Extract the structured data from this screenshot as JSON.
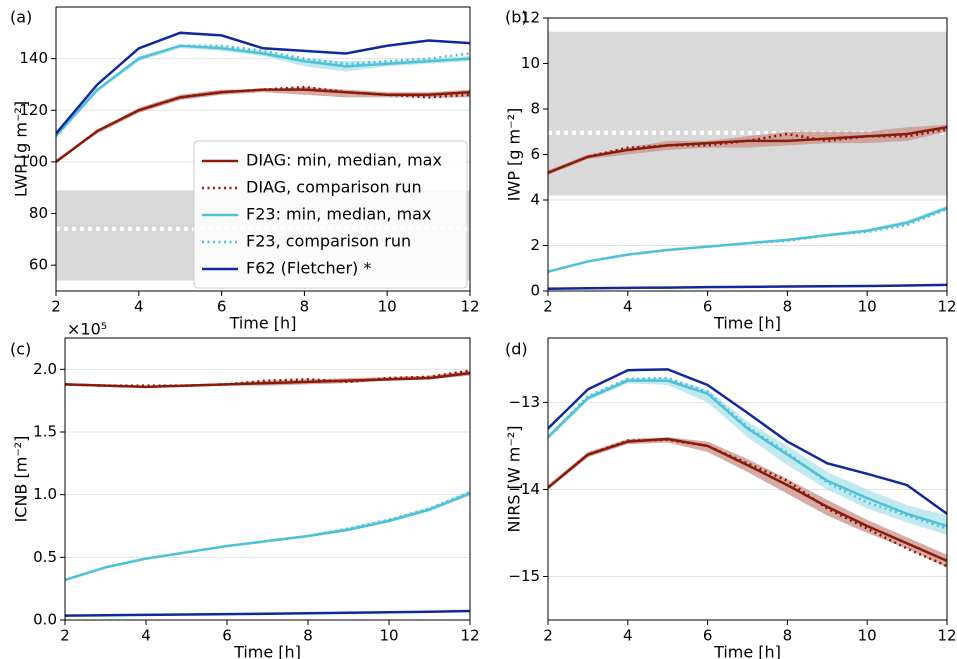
{
  "chart_data": [
    {
      "type": "line",
      "label": "(a)",
      "xlabel": "Time [h]",
      "ylabel": "LWP [g m⁻²]",
      "x": [
        2,
        3,
        4,
        5,
        6,
        7,
        8,
        9,
        10,
        11,
        12
      ],
      "xlim": [
        2,
        12
      ],
      "xticks": [
        2,
        4,
        6,
        8,
        10,
        12
      ],
      "ylim": [
        50,
        160
      ],
      "yticks": [
        60,
        80,
        100,
        120,
        140
      ],
      "grid": true,
      "legend": "lower right",
      "reference": {
        "range": [
          54,
          89
        ],
        "value": 74,
        "color": "#d9d9d9"
      },
      "series": [
        {
          "name": "DIAG: min, median, max",
          "color": "#8b1a0a",
          "style": "solid",
          "band_color": "#c9968e",
          "values": [
            100,
            112,
            120,
            125,
            127,
            128,
            128,
            127,
            126,
            126,
            127
          ],
          "min": [
            100,
            111,
            119,
            124,
            126,
            127,
            126,
            125,
            125,
            125,
            125
          ],
          "max": [
            101,
            112,
            121,
            126,
            128,
            128,
            129,
            128,
            127,
            127,
            128
          ]
        },
        {
          "name": "DIAG, comparison run",
          "color": "#8b1a0a",
          "style": "dotted",
          "values": [
            100,
            112,
            120,
            125,
            127,
            128,
            129,
            127,
            126,
            125,
            126
          ]
        },
        {
          "name": "F23: min, median, max",
          "color": "#4fc1d6",
          "style": "solid",
          "band_color": "#b2e3ec",
          "values": [
            110,
            128,
            140,
            145,
            144,
            142,
            139,
            137,
            138,
            139,
            140
          ],
          "min": [
            110,
            127,
            139,
            144,
            143,
            141,
            137,
            135,
            137,
            138,
            139
          ],
          "max": [
            111,
            128,
            141,
            145,
            145,
            143,
            140,
            139,
            139,
            140,
            141
          ]
        },
        {
          "name": "F23, comparison run",
          "color": "#4fc1d6",
          "style": "dotted",
          "values": [
            110,
            128,
            140,
            145,
            145,
            143,
            140,
            138,
            139,
            140,
            142
          ]
        },
        {
          "name": "F62 (Fletcher) *",
          "color": "#12299a",
          "style": "solid",
          "values": [
            111,
            130,
            144,
            150,
            149,
            144,
            143,
            142,
            145,
            147,
            146
          ]
        }
      ]
    },
    {
      "type": "line",
      "label": "(b)",
      "xlabel": "Time [h]",
      "ylabel": "IWP [g m⁻²]",
      "x": [
        2,
        3,
        4,
        5,
        6,
        7,
        8,
        9,
        10,
        11,
        12
      ],
      "xlim": [
        2,
        12
      ],
      "xticks": [
        2,
        4,
        6,
        8,
        10,
        12
      ],
      "ylim": [
        0,
        12
      ],
      "yticks": [
        0,
        2,
        4,
        6,
        8,
        10,
        12
      ],
      "grid": true,
      "reference": {
        "range": [
          4.2,
          11.4
        ],
        "value": 6.95,
        "color": "#d9d9d9"
      },
      "series": [
        {
          "color": "#8b1a0a",
          "style": "solid",
          "band_color": "#c9968e",
          "values": [
            5.2,
            5.9,
            6.2,
            6.4,
            6.5,
            6.6,
            6.6,
            6.7,
            6.8,
            6.9,
            7.2
          ],
          "min": [
            5.1,
            5.8,
            6.0,
            6.2,
            6.3,
            6.3,
            6.4,
            6.5,
            6.5,
            6.6,
            7.0
          ],
          "max": [
            5.3,
            6.0,
            6.3,
            6.6,
            6.6,
            6.8,
            7.0,
            7.0,
            7.0,
            7.2,
            7.3
          ]
        },
        {
          "color": "#8b1a0a",
          "style": "dotted",
          "values": [
            5.2,
            5.9,
            6.3,
            6.4,
            6.4,
            6.6,
            6.9,
            6.6,
            6.8,
            6.8,
            7.1
          ]
        },
        {
          "color": "#4fc1d6",
          "style": "solid",
          "band_color": "#b2e3ec",
          "values": [
            0.85,
            1.3,
            1.6,
            1.8,
            1.95,
            2.1,
            2.25,
            2.45,
            2.65,
            3.0,
            3.65
          ],
          "min": [
            0.82,
            1.27,
            1.57,
            1.77,
            1.92,
            2.05,
            2.18,
            2.4,
            2.6,
            2.92,
            3.55
          ],
          "max": [
            0.88,
            1.33,
            1.63,
            1.83,
            1.98,
            2.15,
            2.3,
            2.5,
            2.72,
            3.1,
            3.75
          ]
        },
        {
          "color": "#4fc1d6",
          "style": "dotted",
          "values": [
            0.85,
            1.3,
            1.6,
            1.8,
            1.95,
            2.1,
            2.2,
            2.45,
            2.6,
            2.9,
            3.6
          ]
        },
        {
          "color": "#12299a",
          "style": "solid",
          "values": [
            0.1,
            0.12,
            0.14,
            0.15,
            0.17,
            0.18,
            0.2,
            0.21,
            0.22,
            0.24,
            0.27
          ]
        }
      ]
    },
    {
      "type": "line",
      "label": "(c)",
      "xlabel": "Time [h]",
      "ylabel": "ICNB [m⁻²]",
      "y_offset_label": "×10⁵",
      "x": [
        2,
        3,
        4,
        5,
        6,
        7,
        8,
        9,
        10,
        11,
        12
      ],
      "xlim": [
        2,
        12
      ],
      "xticks": [
        2,
        4,
        6,
        8,
        10,
        12
      ],
      "ylim": [
        0,
        2.25
      ],
      "yticks": [
        {
          "value": 0,
          "label": "0.0"
        },
        0.5,
        {
          "value": 1,
          "label": "1.0"
        },
        1.5,
        {
          "value": 2,
          "label": "2.0"
        }
      ],
      "grid": true,
      "series": [
        {
          "color": "#8b1a0a",
          "style": "solid",
          "band_color": "#c9968e",
          "values": [
            1.88,
            1.87,
            1.86,
            1.87,
            1.88,
            1.89,
            1.9,
            1.91,
            1.92,
            1.93,
            1.97
          ],
          "min": [
            1.87,
            1.86,
            1.85,
            1.86,
            1.87,
            1.87,
            1.88,
            1.89,
            1.91,
            1.92,
            1.95
          ],
          "max": [
            1.89,
            1.88,
            1.87,
            1.88,
            1.89,
            1.91,
            1.92,
            1.93,
            1.94,
            1.95,
            1.99
          ]
        },
        {
          "color": "#8b1a0a",
          "style": "dotted",
          "values": [
            1.88,
            1.87,
            1.87,
            1.87,
            1.88,
            1.91,
            1.92,
            1.9,
            1.93,
            1.94,
            1.99
          ]
        },
        {
          "color": "#4fc1d6",
          "style": "solid",
          "band_color": "#b2e3ec",
          "values": [
            0.32,
            0.42,
            0.49,
            0.54,
            0.59,
            0.63,
            0.67,
            0.72,
            0.79,
            0.88,
            1.01
          ],
          "min": [
            0.31,
            0.41,
            0.48,
            0.53,
            0.58,
            0.62,
            0.66,
            0.71,
            0.78,
            0.87,
            0.99
          ],
          "max": [
            0.33,
            0.43,
            0.5,
            0.55,
            0.6,
            0.64,
            0.68,
            0.74,
            0.81,
            0.9,
            1.03
          ]
        },
        {
          "color": "#4fc1d6",
          "style": "dotted",
          "values": [
            0.32,
            0.42,
            0.49,
            0.54,
            0.59,
            0.63,
            0.67,
            0.73,
            0.8,
            0.89,
            1.02
          ]
        },
        {
          "color": "#12299a",
          "style": "solid",
          "values": [
            0.035,
            0.038,
            0.041,
            0.044,
            0.047,
            0.05,
            0.054,
            0.058,
            0.062,
            0.066,
            0.072
          ]
        }
      ]
    },
    {
      "type": "line",
      "label": "(d)",
      "xlabel": "Time [h]",
      "ylabel": "NIRS [W m⁻²]",
      "x": [
        2,
        3,
        4,
        5,
        6,
        7,
        8,
        9,
        10,
        11,
        12
      ],
      "xlim": [
        2,
        12
      ],
      "xticks": [
        2,
        4,
        6,
        8,
        10,
        12
      ],
      "ylim": [
        -15.5,
        -12.26
      ],
      "yticks": [
        {
          "value": -15,
          "label": "−15"
        },
        {
          "value": -14,
          "label": "−14"
        },
        {
          "value": -13,
          "label": "−13"
        }
      ],
      "grid": true,
      "series": [
        {
          "color": "#8b1a0a",
          "style": "solid",
          "band_color": "#c9968e",
          "values": [
            -13.98,
            -13.6,
            -13.45,
            -13.42,
            -13.5,
            -13.72,
            -13.95,
            -14.2,
            -14.42,
            -14.62,
            -14.82
          ],
          "min": [
            -14.0,
            -13.63,
            -13.48,
            -13.46,
            -13.57,
            -13.8,
            -14.05,
            -14.3,
            -14.5,
            -14.68,
            -14.9
          ],
          "max": [
            -13.95,
            -13.57,
            -13.42,
            -13.4,
            -13.45,
            -13.65,
            -13.88,
            -14.12,
            -14.35,
            -14.55,
            -14.75
          ]
        },
        {
          "color": "#8b1a0a",
          "style": "dotted",
          "values": [
            -13.98,
            -13.6,
            -13.44,
            -13.43,
            -13.5,
            -13.7,
            -13.9,
            -14.22,
            -14.45,
            -14.68,
            -14.88
          ]
        },
        {
          "color": "#4fc1d6",
          "style": "solid",
          "band_color": "#b2e3ec",
          "values": [
            -13.4,
            -12.95,
            -12.75,
            -12.75,
            -12.9,
            -13.3,
            -13.6,
            -13.9,
            -14.1,
            -14.28,
            -14.42
          ],
          "min": [
            -13.43,
            -12.98,
            -12.78,
            -12.8,
            -13.0,
            -13.4,
            -13.72,
            -14.0,
            -14.22,
            -14.38,
            -14.52
          ],
          "max": [
            -13.37,
            -12.92,
            -12.72,
            -12.72,
            -12.85,
            -13.22,
            -13.5,
            -13.8,
            -14.0,
            -14.18,
            -14.3
          ]
        },
        {
          "color": "#4fc1d6",
          "style": "dotted",
          "values": [
            -13.4,
            -12.93,
            -12.73,
            -12.72,
            -12.88,
            -13.28,
            -13.58,
            -13.92,
            -14.15,
            -14.3,
            -14.45
          ]
        },
        {
          "color": "#12299a",
          "style": "solid",
          "values": [
            -13.3,
            -12.85,
            -12.63,
            -12.62,
            -12.8,
            -13.12,
            -13.45,
            -13.7,
            -13.82,
            -13.95,
            -14.28
          ]
        }
      ]
    }
  ]
}
